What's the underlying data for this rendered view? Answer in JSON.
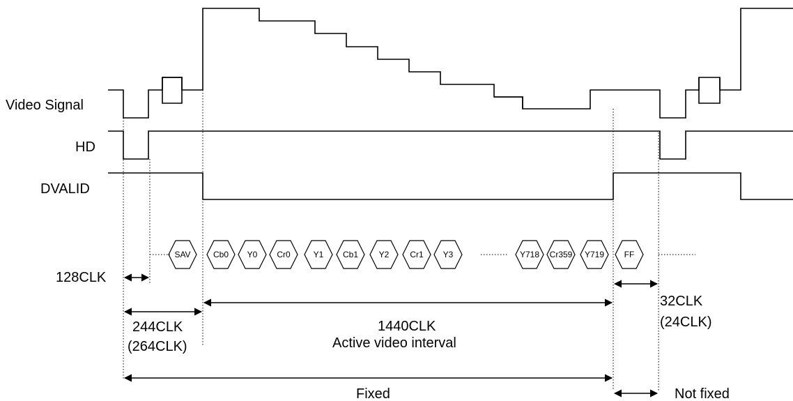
{
  "signals": {
    "video": "Video Signal",
    "hd": "HD",
    "dvalid": "DVALID"
  },
  "data_words": [
    {
      "label": "SAV"
    },
    {
      "label": "Cb0"
    },
    {
      "label": "Y0"
    },
    {
      "label": "Cr0"
    },
    {
      "label": "Y1"
    },
    {
      "label": "Cb1"
    },
    {
      "label": "Y2"
    },
    {
      "label": "Cr1"
    },
    {
      "label": "Y3"
    },
    {
      "label": "Y718"
    },
    {
      "label": "Cr359"
    },
    {
      "label": "Y719"
    },
    {
      "label": "FF"
    }
  ],
  "intervals": {
    "clk128": "128CLK",
    "clk244": "244CLK",
    "clk244_alt": "(264CLK)",
    "clk1440": "1440CLK",
    "active": "Active video interval",
    "clk32": "32CLK",
    "clk32_alt": "(24CLK)",
    "fixed": "Fixed",
    "not_fixed": "Not fixed"
  }
}
